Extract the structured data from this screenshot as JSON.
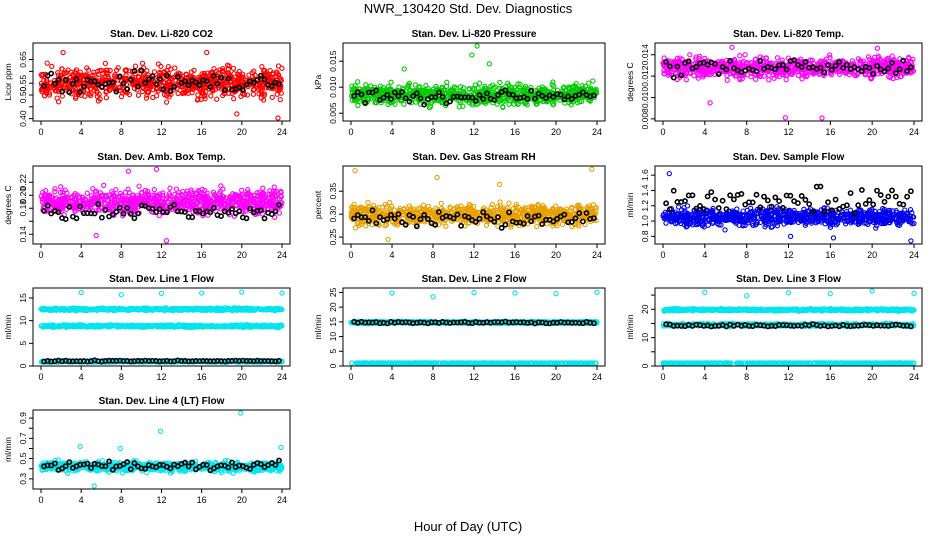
{
  "figure": {
    "title": "NWR_130420  Std. Dev. Diagnostics",
    "xlabel": "Hour of Day (UTC)"
  },
  "chart_data": [
    {
      "type": "scatter",
      "title": "Stan. Dev. Li-820 CO2",
      "ylabel": "Licor ppm",
      "color": "#ff0000",
      "xlim": [
        0,
        24
      ],
      "ylim": [
        0.39,
        0.72
      ],
      "xticks": [
        0,
        4,
        8,
        12,
        16,
        20,
        24
      ],
      "yticks": [
        0.4,
        0.45,
        0.5,
        0.55,
        0.6,
        0.65
      ],
      "ytick_labels": [
        "0.40",
        "",
        "0.50",
        "0.55",
        "",
        "0.65"
      ],
      "bands": [
        {
          "center": 0.55,
          "spread": 0.06,
          "density": 3.0
        }
      ],
      "black": {
        "center": 0.55,
        "spread": 0.04
      },
      "outliers": [
        [
          23.6,
          0.398
        ],
        [
          19.5,
          0.42
        ],
        [
          2.2,
          0.68
        ],
        [
          16.5,
          0.68
        ]
      ]
    },
    {
      "type": "scatter",
      "title": "Stan. Dev. Li-820 Pressure",
      "ylabel": "kPa",
      "color": "#00cc00",
      "xlim": [
        0,
        24
      ],
      "ylim": [
        0.0035,
        0.0185
      ],
      "xticks": [
        0,
        4,
        8,
        12,
        16,
        20,
        24
      ],
      "yticks": [
        0.005,
        0.01,
        0.015
      ],
      "ytick_labels": [
        "0.005",
        "0.010",
        "0.015"
      ],
      "bands": [
        {
          "center": 0.0085,
          "spread": 0.0018,
          "density": 3.0
        }
      ],
      "black": {
        "center": 0.0082,
        "spread": 0.0014
      },
      "outliers": [
        [
          12.3,
          0.0182
        ],
        [
          11.8,
          0.0162
        ],
        [
          13.5,
          0.0145
        ],
        [
          5.2,
          0.0135
        ],
        [
          23.6,
          0.0112
        ]
      ]
    },
    {
      "type": "scatter",
      "title": "Stan. Dev. Li-820 Temp.",
      "ylabel": "degrees C",
      "color": "#ff00ff",
      "xlim": [
        0,
        24
      ],
      "ylim": [
        0.0078,
        0.0151
      ],
      "xticks": [
        0,
        4,
        8,
        12,
        16,
        20,
        24
      ],
      "yticks": [
        0.008,
        0.01,
        0.012,
        0.014
      ],
      "ytick_labels": [
        "0.008",
        "0.010",
        "0.012",
        "0.014"
      ],
      "bands": [
        {
          "center": 0.0128,
          "spread": 0.0009,
          "density": 3.0
        }
      ],
      "black": {
        "center": 0.0128,
        "spread": 0.0007
      },
      "outliers": [
        [
          11.7,
          0.0081
        ],
        [
          15.2,
          0.0079
        ],
        [
          4.5,
          0.0095
        ],
        [
          6.6,
          0.0147
        ],
        [
          20.5,
          0.0146
        ]
      ]
    },
    {
      "type": "scatter",
      "title": "Stan. Dev. Amb. Box Temp.",
      "ylabel": "degrees C",
      "color": "#ff00ff",
      "xlim": [
        0,
        24
      ],
      "ylim": [
        0.125,
        0.245
      ],
      "xticks": [
        0,
        4,
        8,
        12,
        16,
        20,
        24
      ],
      "yticks": [
        0.14,
        0.16,
        0.18,
        0.2,
        0.22
      ],
      "ytick_labels": [
        "0.14",
        "",
        "0.18",
        "0.20",
        "0.22"
      ],
      "bands": [
        {
          "center": 0.19,
          "spread": 0.017,
          "density": 3.0
        }
      ],
      "black": {
        "center": 0.175,
        "spread": 0.012
      },
      "outliers": [
        [
          11.5,
          0.24
        ],
        [
          8.7,
          0.237
        ],
        [
          12.5,
          0.13
        ],
        [
          5.5,
          0.138
        ]
      ]
    },
    {
      "type": "scatter",
      "title": "Stan. Dev. Gas Stream RH",
      "ylabel": "percent",
      "color": "#e6a000",
      "xlim": [
        0,
        24
      ],
      "ylim": [
        0.235,
        0.405
      ],
      "xticks": [
        0,
        4,
        8,
        12,
        16,
        20,
        24
      ],
      "yticks": [
        0.25,
        0.3,
        0.35
      ],
      "ytick_labels": [
        "0.25",
        "0.30",
        "0.35"
      ],
      "bands": [
        {
          "center": 0.298,
          "spread": 0.022,
          "density": 3.0
        }
      ],
      "black": {
        "center": 0.29,
        "spread": 0.015
      },
      "outliers": [
        [
          0.4,
          0.395
        ],
        [
          23.5,
          0.398
        ],
        [
          14.5,
          0.365
        ],
        [
          3.6,
          0.245
        ],
        [
          8.4,
          0.38
        ]
      ]
    },
    {
      "type": "scatter",
      "title": "Stan. Dev. Sample Flow",
      "ylabel": "ml/min",
      "color": "#0000ee",
      "xlim": [
        0,
        24
      ],
      "ylim": [
        0.7,
        1.72
      ],
      "xticks": [
        0,
        4,
        8,
        12,
        16,
        20,
        24
      ],
      "yticks": [
        0.8,
        1.0,
        1.2,
        1.4,
        1.6
      ],
      "ytick_labels": [
        "0.8",
        "1.0",
        "1.2",
        "1.4",
        "1.6"
      ],
      "bands": [
        {
          "center": 1.05,
          "spread": 0.11,
          "density": 3.0
        }
      ],
      "black": {
        "center": 1.28,
        "spread": 0.16
      },
      "outliers": [
        [
          0.6,
          1.62
        ],
        [
          23.7,
          0.74
        ],
        [
          16.3,
          0.78
        ],
        [
          12.2,
          0.8
        ]
      ]
    },
    {
      "type": "scatter",
      "title": "Stan. Dev. Line 1 Flow",
      "ylabel": "ml/min",
      "color": "#00e5ee",
      "xlim": [
        0,
        24
      ],
      "ylim": [
        0,
        17.2
      ],
      "xticks": [
        0,
        4,
        8,
        12,
        16,
        20,
        24
      ],
      "yticks": [
        0,
        5,
        10,
        15
      ],
      "ytick_labels": [
        "0",
        "5",
        "10",
        "15"
      ],
      "bands": [
        {
          "center": 12.5,
          "spread": 0.25,
          "density": 2.2
        },
        {
          "center": 8.8,
          "spread": 0.25,
          "density": 2.2
        },
        {
          "center": 1.0,
          "spread": 0.15,
          "density": 1.6
        }
      ],
      "black": {
        "center": 1.1,
        "spread": 0.12
      },
      "outliers": [
        [
          4,
          16.2
        ],
        [
          8,
          15.7
        ],
        [
          12,
          16.0
        ],
        [
          16,
          16.1
        ],
        [
          20,
          16.3
        ],
        [
          24,
          16.1
        ]
      ]
    },
    {
      "type": "scatter",
      "title": "Stan. Dev. Line 2 Flow",
      "ylabel": "ml/min",
      "color": "#00e5ee",
      "xlim": [
        0,
        24
      ],
      "ylim": [
        0,
        26.5
      ],
      "xticks": [
        0,
        4,
        8,
        12,
        16,
        20,
        24
      ],
      "yticks": [
        0,
        5,
        10,
        15,
        20,
        25
      ],
      "ytick_labels": [
        "0",
        "5",
        "10",
        "15",
        "20",
        "25"
      ],
      "bands": [
        {
          "center": 14.8,
          "spread": 0.35,
          "density": 2.4
        },
        {
          "center": 0.5,
          "spread": 0.2,
          "density": 1.6
        }
      ],
      "black": {
        "center": 14.8,
        "spread": 0.3
      },
      "outliers": [
        [
          4,
          24.8
        ],
        [
          8,
          23.5
        ],
        [
          12,
          24.9
        ],
        [
          16,
          24.8
        ],
        [
          20,
          24.6
        ],
        [
          24,
          25.0
        ]
      ]
    },
    {
      "type": "scatter",
      "title": "Stan. Dev. Line 3 Flow",
      "ylabel": "ml/min",
      "color": "#00e5ee",
      "xlim": [
        0,
        24
      ],
      "ylim": [
        0,
        27.5
      ],
      "xticks": [
        0,
        4,
        8,
        12,
        16,
        20,
        24
      ],
      "yticks": [
        0,
        5,
        10,
        15,
        20,
        25
      ],
      "ytick_labels": [
        "0",
        "",
        "10",
        "",
        "20",
        ""
      ],
      "bands": [
        {
          "center": 19.8,
          "spread": 0.35,
          "density": 2.4
        },
        {
          "center": 14.5,
          "spread": 0.5,
          "density": 2.0
        },
        {
          "center": 0.5,
          "spread": 0.2,
          "density": 1.6
        }
      ],
      "black": {
        "center": 14.3,
        "spread": 0.4
      },
      "outliers": [
        [
          4,
          26.0
        ],
        [
          8,
          24.8
        ],
        [
          12,
          25.8
        ],
        [
          16,
          25.5
        ],
        [
          20,
          26.6
        ],
        [
          24,
          25.6
        ]
      ]
    },
    {
      "type": "scatter",
      "title": "Stan. Dev. Line 4 (LT) Flow",
      "ylabel": "ml/min",
      "color": "#00e5ee",
      "xlim": [
        0,
        24
      ],
      "ylim": [
        0.2,
        0.98
      ],
      "xticks": [
        0,
        4,
        8,
        12,
        16,
        20,
        24
      ],
      "yticks": [
        0.3,
        0.4,
        0.5,
        0.6,
        0.7,
        0.8,
        0.9
      ],
      "ytick_labels": [
        "0.3",
        "",
        "0.5",
        "",
        "0.7",
        "",
        "0.9"
      ],
      "bands": [
        {
          "center": 0.42,
          "spread": 0.045,
          "density": 3.0
        }
      ],
      "black": {
        "center": 0.43,
        "spread": 0.035
      },
      "outliers": [
        [
          19.9,
          0.96
        ],
        [
          11.9,
          0.77
        ],
        [
          3.9,
          0.62
        ],
        [
          7.9,
          0.6
        ],
        [
          23.9,
          0.61
        ],
        [
          5.3,
          0.22
        ]
      ]
    }
  ]
}
